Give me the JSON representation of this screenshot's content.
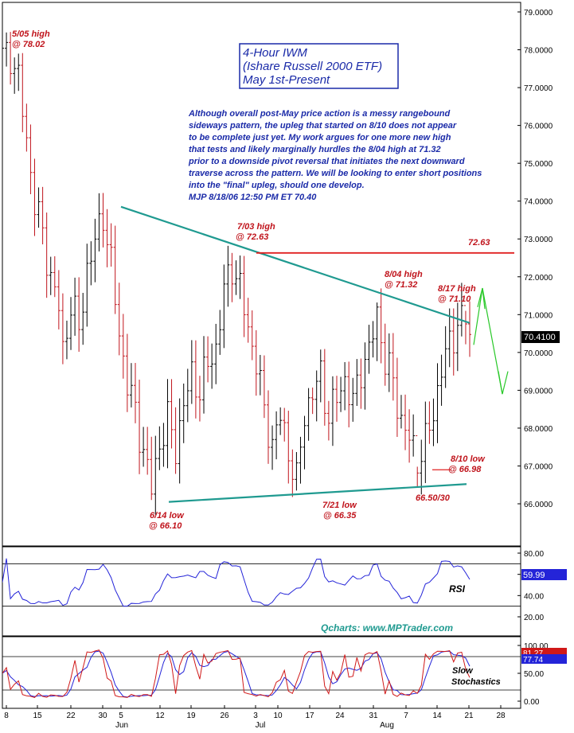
{
  "chart_data": {
    "type": "candlestick",
    "title_lines": [
      "4-Hour IWM",
      "(Ishare Russell 2000 ETF)",
      "May 1st-Present"
    ],
    "commentary": [
      "Although overall post-May price action is a messy rangebound",
      "sideways pattern, the upleg that started on 8/10 does not appear",
      "to be complete just yet. My work argues for one more new high",
      "that tests and likely marginally hurdles the 8/04 high at 71.32",
      "prior to a downside pivot reversal that initiates the next downward",
      "traverse across the pattern. We will be looking to enter short positions",
      "into the \"final\" upleg, should one develop.",
      "MJP  8/18/06  12:50 PM ET 70.40"
    ],
    "price_axis": {
      "ticks": [
        "66.0000",
        "67.0000",
        "68.0000",
        "69.0000",
        "70.0000",
        "71.0000",
        "72.0000",
        "73.0000",
        "74.0000",
        "75.0000",
        "76.0000",
        "77.0000",
        "78.0000",
        "79.0000"
      ],
      "ylim": [
        65,
        79.2
      ]
    },
    "current_price": "70.4100",
    "x_ticks": [
      "8",
      "15",
      "22",
      "30",
      "5",
      "12",
      "19",
      "26",
      "3",
      "10",
      "17",
      "24",
      "31",
      "7",
      "14",
      "21",
      "28"
    ],
    "month_labels": [
      "Jun",
      "Jul",
      "Aug"
    ],
    "annotations": [
      {
        "label": "5/05 high",
        "value": "@ 78.02"
      },
      {
        "label": "7/03 high",
        "value": "@ 72.63"
      },
      {
        "label": "8/04 high",
        "value": "@ 71.32"
      },
      {
        "label": "8/17 high",
        "value": "@ 71.10"
      },
      {
        "label": "6/14 low",
        "value": "@ 66.10"
      },
      {
        "label": "7/21 low",
        "value": "@ 66.35"
      },
      {
        "label": "8/10 low",
        "value": "@ 66.98"
      }
    ],
    "resistance_label": "72.63",
    "support_label": "66.50/30",
    "key_points": [
      {
        "date": "5/05",
        "price": 78.02
      },
      {
        "date": "6/14",
        "price": 66.1
      },
      {
        "date": "7/03",
        "price": 72.63
      },
      {
        "date": "7/21",
        "price": 66.35
      },
      {
        "date": "8/04",
        "price": 71.32
      },
      {
        "date": "8/10",
        "price": 66.98
      },
      {
        "date": "8/17",
        "price": 71.1
      }
    ],
    "rsi": {
      "label": "RSI",
      "ticks": [
        "20.00",
        "40.00",
        "60.00",
        "80.00"
      ],
      "current": "59.99"
    },
    "stochastics": {
      "label_lines": [
        "Slow",
        "Stochastics"
      ],
      "ticks": [
        "0.00",
        "50.00",
        "100.00"
      ],
      "current_1": "81.27",
      "current_2": "77.74"
    },
    "watermark": "Qcharts: www.MPTrader.com",
    "colors": {
      "up_bar": "#000000",
      "down_bar": "#c0141c",
      "trendline": "#1f9a90",
      "resistance": "#e02020",
      "projection": "#28c828",
      "rsi_line": "#2424d8",
      "stoch_fast": "#d01818",
      "stoch_slow": "#2424d8"
    }
  }
}
